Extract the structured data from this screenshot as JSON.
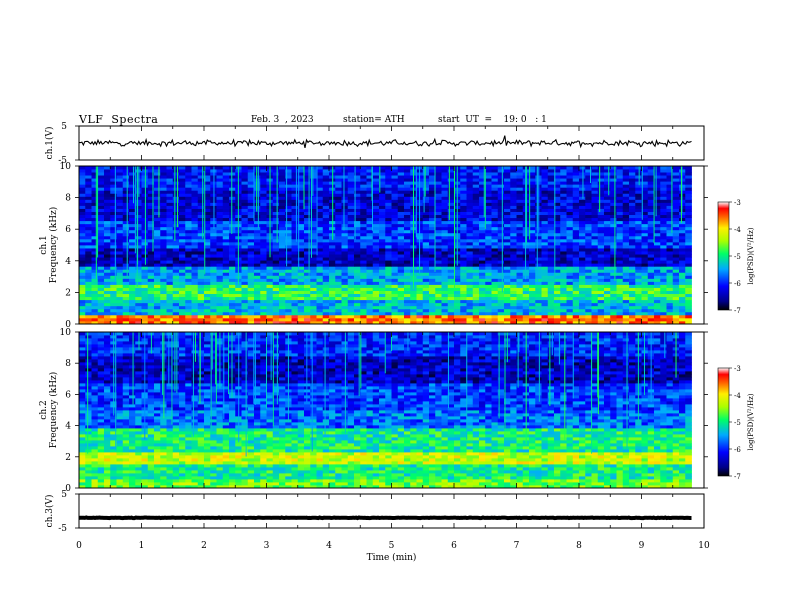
{
  "header": {
    "title": "VLF  Spectra",
    "date": "Feb. 3  , 2023",
    "station": "station= ATH",
    "start": "start  UT  =    19: 0   : 1"
  },
  "chart_data": [
    {
      "type": "line",
      "panel": "ch1-waveform",
      "ylabel": "ch.1(V)",
      "ylim": [
        -5,
        5
      ],
      "yticks": [
        "5",
        "-5"
      ],
      "xlim": [
        0,
        10
      ],
      "series": [
        {
          "x_range": [
            0,
            9.8
          ],
          "level": 0,
          "noise_amplitude": 1.0
        }
      ]
    },
    {
      "type": "heatmap",
      "panel": "ch1-spectrogram",
      "ylabel": [
        "ch.1",
        "Frequency  (kHz)"
      ],
      "ylim": [
        0,
        10
      ],
      "yticks": [
        "0",
        "2",
        "4",
        "6",
        "8",
        "10"
      ],
      "xlim": [
        0,
        10
      ],
      "data_extent_min": 9.8,
      "colorbar": {
        "label": "log(PSD)(V²/Hz)",
        "range": [
          -7,
          -3
        ],
        "ticks": [
          "-3",
          "-4",
          "-5",
          "-6",
          "-7"
        ]
      },
      "bands": [
        {
          "f0": 0.0,
          "f1": 0.5,
          "level": -3.6
        },
        {
          "f0": 0.5,
          "f1": 1.5,
          "level": -5.4
        },
        {
          "f0": 1.5,
          "f1": 2.5,
          "level": -4.9
        },
        {
          "f0": 2.5,
          "f1": 3.6,
          "level": -5.5
        },
        {
          "f0": 3.6,
          "f1": 4.8,
          "level": -6.4
        },
        {
          "f0": 4.8,
          "f1": 6.5,
          "level": -5.9
        },
        {
          "f0": 6.5,
          "f1": 8.5,
          "level": -6.3
        },
        {
          "f0": 8.5,
          "f1": 10.0,
          "level": -6.1
        }
      ]
    },
    {
      "type": "heatmap",
      "panel": "ch2-spectrogram",
      "ylabel": [
        "ch.2",
        "Frequency  (kHz)"
      ],
      "ylim": [
        0,
        10
      ],
      "yticks": [
        "0",
        "2",
        "4",
        "6",
        "8",
        "10"
      ],
      "xlim": [
        0,
        10
      ],
      "data_extent_min": 9.8,
      "colorbar": {
        "label": "log(PSD)(V²/Hz)",
        "range": [
          -7,
          -3
        ],
        "ticks": [
          "-3",
          "-4",
          "-5",
          "-6",
          "-7"
        ]
      },
      "bands": [
        {
          "f0": 0.0,
          "f1": 0.6,
          "level": -4.6
        },
        {
          "f0": 0.6,
          "f1": 1.6,
          "level": -5.0
        },
        {
          "f0": 1.6,
          "f1": 2.4,
          "level": -4.3
        },
        {
          "f0": 2.4,
          "f1": 3.8,
          "level": -5.0
        },
        {
          "f0": 3.8,
          "f1": 5.0,
          "level": -5.7
        },
        {
          "f0": 5.0,
          "f1": 6.8,
          "level": -5.9
        },
        {
          "f0": 6.8,
          "f1": 8.5,
          "level": -6.4
        },
        {
          "f0": 8.5,
          "f1": 10.0,
          "level": -6.0
        }
      ]
    },
    {
      "type": "line",
      "panel": "ch3-waveform",
      "ylabel": "ch.3(V)",
      "ylim": [
        -5,
        5
      ],
      "yticks": [
        "5",
        "-5"
      ],
      "xlim": [
        0,
        10
      ],
      "series": [
        {
          "x_range": [
            0,
            9.8
          ],
          "level": -2,
          "noise_amplitude": 0.1
        }
      ]
    }
  ],
  "xaxis": {
    "label": "Time  (min)",
    "ticks": [
      "0",
      "1",
      "2",
      "3",
      "4",
      "5",
      "6",
      "7",
      "8",
      "9",
      "10"
    ]
  },
  "colors": {
    "background": "#ffffff",
    "frame": "#000000",
    "trace": "#000000"
  }
}
